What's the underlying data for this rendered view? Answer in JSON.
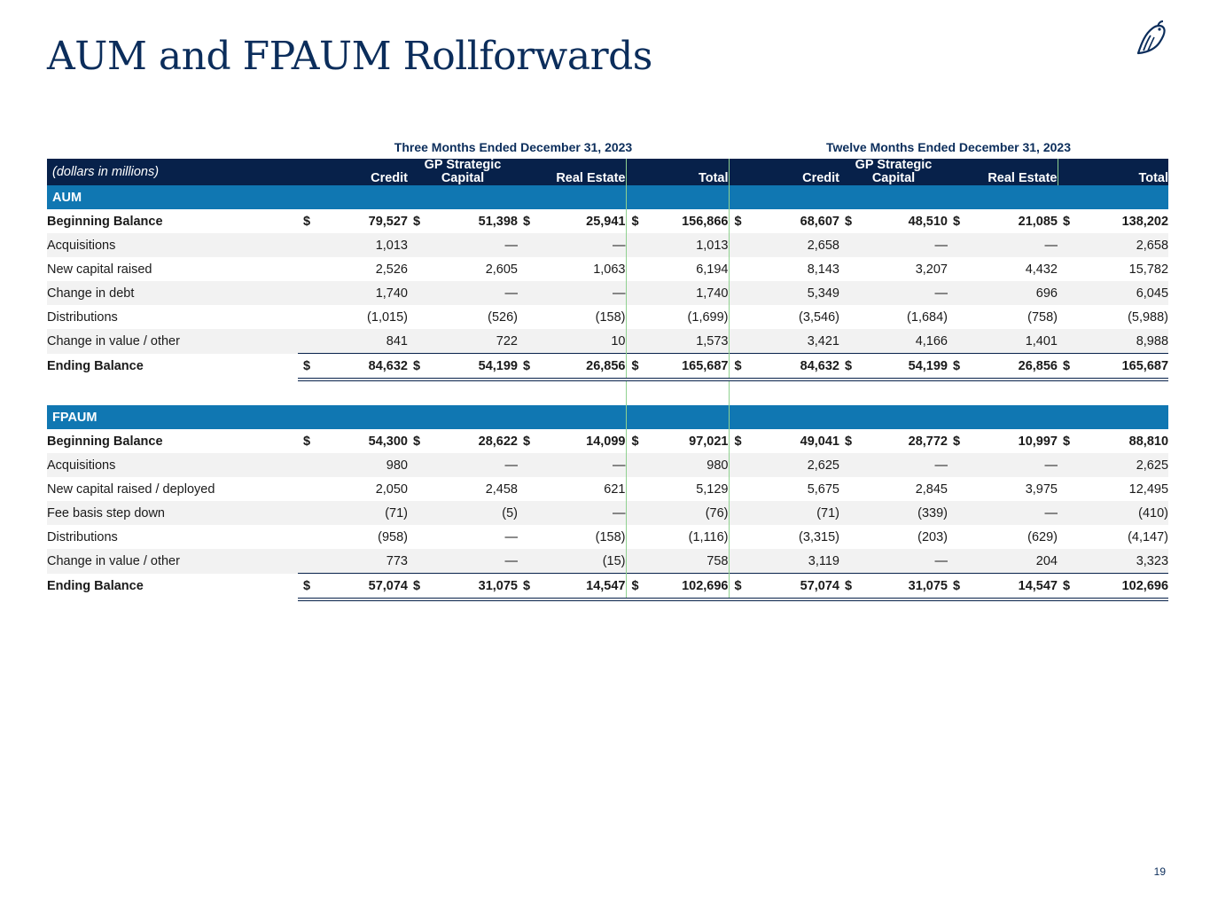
{
  "title": "AUM and FPAUM Rollforwards",
  "page_number": "19",
  "periods": [
    "Three Months Ended December 31, 2023",
    "Twelve Months Ended December 31, 2023"
  ],
  "header": {
    "units": "(dollars in millions)",
    "three": [
      "Credit",
      "GP Strategic|Capital",
      "Real Estate",
      "Total"
    ],
    "twelve": [
      "Credit",
      "GP Strategic|Capital",
      "Real Estate",
      "Total"
    ]
  },
  "sections": [
    {
      "name": "AUM",
      "rows": [
        {
          "label": "Beginning Balance",
          "bold": true,
          "dollar": true,
          "values": [
            "79,527",
            "51,398",
            "25,941",
            "156,866",
            "68,607",
            "48,510",
            "21,085",
            "138,202"
          ]
        },
        {
          "label": "Acquisitions",
          "values": [
            "1,013",
            "—",
            "—",
            "1,013",
            "2,658",
            "—",
            "—",
            "2,658"
          ]
        },
        {
          "label": "New capital raised",
          "values": [
            "2,526",
            "2,605",
            "1,063",
            "6,194",
            "8,143",
            "3,207",
            "4,432",
            "15,782"
          ]
        },
        {
          "label": "Change in debt",
          "values": [
            "1,740",
            "—",
            "—",
            "1,740",
            "5,349",
            "—",
            "696",
            "6,045"
          ]
        },
        {
          "label": "Distributions",
          "values": [
            "(1,015)",
            "(526)",
            "(158)",
            "(1,699)",
            "(3,546)",
            "(1,684)",
            "(758)",
            "(5,988)"
          ]
        },
        {
          "label": "Change in value / other",
          "values": [
            "841",
            "722",
            "10",
            "1,573",
            "3,421",
            "4,166",
            "1,401",
            "8,988"
          ]
        },
        {
          "label": "Ending Balance",
          "bold": true,
          "dollar": true,
          "ending": true,
          "values": [
            "84,632",
            "54,199",
            "26,856",
            "165,687",
            "84,632",
            "54,199",
            "26,856",
            "165,687"
          ]
        }
      ]
    },
    {
      "name": "FPAUM",
      "rows": [
        {
          "label": "Beginning Balance",
          "bold": true,
          "dollar": true,
          "values": [
            "54,300",
            "28,622",
            "14,099",
            "97,021",
            "49,041",
            "28,772",
            "10,997",
            "88,810"
          ]
        },
        {
          "label": "Acquisitions",
          "values": [
            "980",
            "—",
            "—",
            "980",
            "2,625",
            "—",
            "—",
            "2,625"
          ]
        },
        {
          "label": "New capital raised / deployed",
          "values": [
            "2,050",
            "2,458",
            "621",
            "5,129",
            "5,675",
            "2,845",
            "3,975",
            "12,495"
          ]
        },
        {
          "label": "Fee basis step down",
          "values": [
            "(71)",
            "(5)",
            "—",
            "(76)",
            "(71)",
            "(339)",
            "—",
            "(410)"
          ]
        },
        {
          "label": "Distributions",
          "values": [
            "(958)",
            "—",
            "(158)",
            "(1,116)",
            "(3,315)",
            "(203)",
            "(629)",
            "(4,147)"
          ]
        },
        {
          "label": "Change in value / other",
          "values": [
            "773",
            "—",
            "(15)",
            "758",
            "3,119",
            "—",
            "204",
            "3,323"
          ]
        },
        {
          "label": "Ending Balance",
          "bold": true,
          "dollar": true,
          "ending": true,
          "values": [
            "57,074",
            "31,075",
            "14,547",
            "102,696",
            "57,074",
            "31,075",
            "14,547",
            "102,696"
          ]
        }
      ]
    }
  ],
  "colors": {
    "navy": "#07214a",
    "section_blue": "#1077b2",
    "alt_row": "#f2f2f2",
    "title": "#0b2d5b"
  }
}
